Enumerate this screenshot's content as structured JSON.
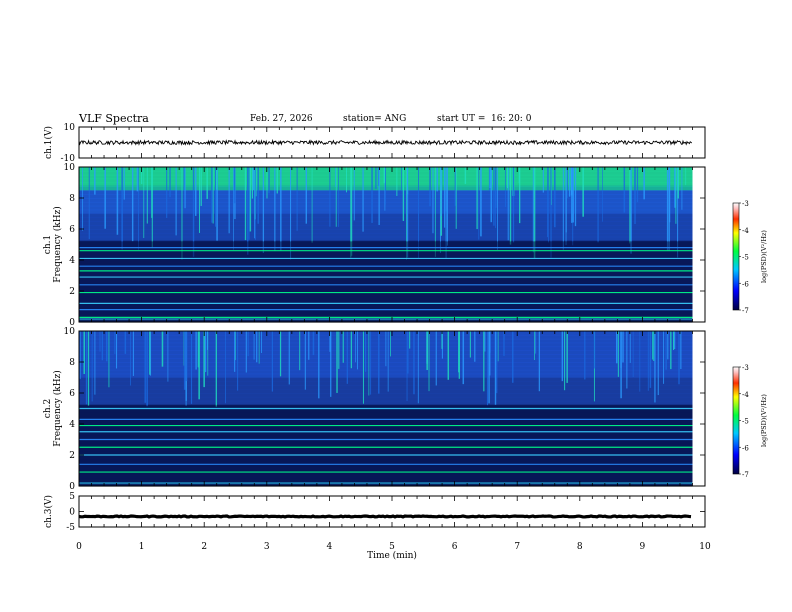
{
  "header": {
    "title": "VLF Spectra",
    "date": "Feb. 27, 2026",
    "station": "station= ANG",
    "start_label": "start  UT  =",
    "start_time": "16: 20: 0"
  },
  "colors": {
    "background": "#ffffff",
    "axis": "#000000",
    "spec_low": "#000060",
    "spec_mid": "#1e5cff",
    "spec_high": "#00ff8a"
  },
  "chart_data": [
    {
      "type": "line",
      "name": "ch1-waveform",
      "ylabel": "ch.1(V)",
      "ylim": [
        -10,
        10
      ],
      "yticks": [
        "10",
        "-10"
      ],
      "x_range_min": [
        0,
        9.8
      ],
      "baseline_v": 0,
      "amplitude_v": 1.2
    },
    {
      "type": "heatmap",
      "name": "ch1-spectrogram",
      "ylabel_top": "ch.1",
      "ylabel": "Frequency (kHz)",
      "ylim": [
        0,
        10
      ],
      "yticks": [
        "10",
        "8",
        "6",
        "4",
        "2",
        "0"
      ],
      "x_range_min": [
        0,
        9.8
      ],
      "colorbar": {
        "label": "log(PSD)(V²/Hz)",
        "range": [
          -7,
          -3
        ],
        "ticks": [
          "-3",
          "-4",
          "-5",
          "-6",
          "-7"
        ]
      },
      "bands_khz": [
        0.3,
        0.8,
        1.2,
        1.9,
        2.4,
        2.9,
        3.3,
        3.6,
        4.1,
        4.6,
        4.8
      ]
    },
    {
      "type": "heatmap",
      "name": "ch2-spectrogram",
      "ylabel_top": "ch.2",
      "ylabel": "Frequency (kHz)",
      "ylim": [
        0,
        10
      ],
      "yticks": [
        "10",
        "8",
        "6",
        "4",
        "2",
        "0"
      ],
      "x_range_min": [
        0,
        9.8
      ],
      "colorbar": {
        "label": "log(PSD)(V²/Hz)",
        "range": [
          -7,
          -3
        ],
        "ticks": [
          "-3",
          "-4",
          "-5",
          "-6",
          "-7"
        ]
      },
      "bands_khz": [
        0.9,
        1.4,
        2.0,
        2.5,
        3.0,
        3.5,
        3.9,
        4.3,
        5.0
      ]
    },
    {
      "type": "line",
      "name": "ch3-waveform",
      "ylabel": "ch.3(V)",
      "ylim": [
        -5,
        5
      ],
      "yticks": [
        "5",
        "0",
        "-5"
      ],
      "x_range_min": [
        0,
        9.8
      ],
      "baseline_v": -1.6,
      "amplitude_v": 0.15
    }
  ],
  "x_axis": {
    "label": "Time  (min)",
    "range": [
      0,
      10
    ],
    "ticks": [
      "0",
      "1",
      "2",
      "3",
      "4",
      "5",
      "6",
      "7",
      "8",
      "9",
      "10"
    ]
  }
}
